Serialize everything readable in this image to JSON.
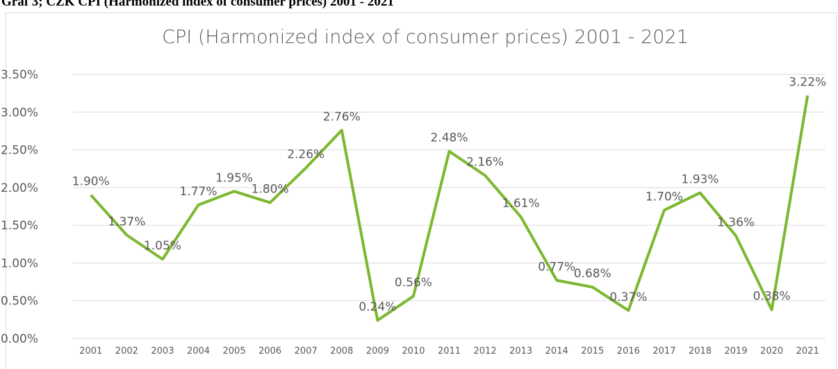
{
  "caption": "Graf 3; CZK CPI (Harmonized index of consumer prices) 2001 - 2021",
  "chart_data": {
    "type": "line",
    "title": "CPI (Harmonized index of consumer prices) 2001 - 2021",
    "categories": [
      "2001",
      "2002",
      "2003",
      "2004",
      "2005",
      "2006",
      "2007",
      "2008",
      "2009",
      "2010",
      "2011",
      "2012",
      "2013",
      "2014",
      "2015",
      "2016",
      "2017",
      "2018",
      "2019",
      "2020",
      "2021"
    ],
    "values": [
      1.9,
      1.37,
      1.05,
      1.77,
      1.95,
      1.8,
      2.26,
      2.76,
      0.24,
      0.56,
      2.48,
      2.16,
      1.61,
      0.77,
      0.68,
      0.37,
      1.7,
      1.93,
      1.36,
      0.38,
      3.22
    ],
    "value_labels": [
      "1.90%",
      "1.37%",
      "1.05%",
      "1.77%",
      "1.95%",
      "1.80%",
      "2.26%",
      "2.76%",
      "0.24%",
      "0.56%",
      "2.48%",
      "2.16%",
      "1.61%",
      "0.77%",
      "0.68%",
      "0.37%",
      "1.70%",
      "1.93%",
      "1.36%",
      "0.38%",
      "3.22%"
    ],
    "color": "#7cb82f",
    "ylim": [
      0,
      3.5
    ],
    "yticks": [
      {
        "value": 0,
        "label": "0.00%"
      },
      {
        "value": 0.5,
        "label": "0.50%"
      },
      {
        "value": 1,
        "label": "1.00%"
      },
      {
        "value": 1.5,
        "label": "1.50%"
      },
      {
        "value": 2,
        "label": "2.00%"
      },
      {
        "value": 2.5,
        "label": "2.50%"
      },
      {
        "value": 3,
        "label": "3.00%"
      },
      {
        "value": 3.5,
        "label": "3.50%"
      }
    ],
    "grid": true
  }
}
